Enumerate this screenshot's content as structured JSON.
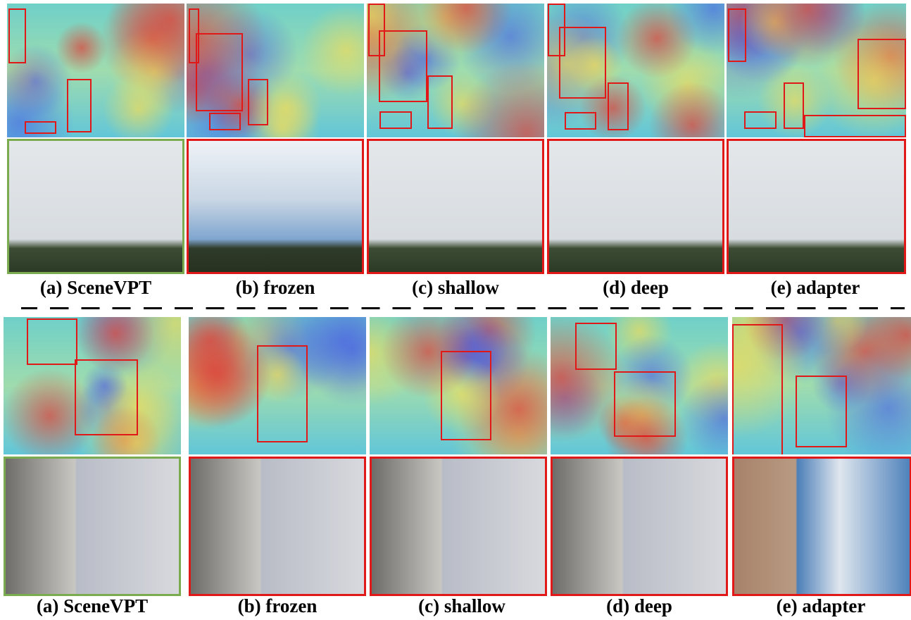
{
  "groups": [
    {
      "captions": [
        "(a) SceneVPT",
        "(b) frozen",
        "(c) shallow",
        "(d) deep",
        "(e) adapter"
      ]
    },
    {
      "captions": [
        "(a) SceneVPT",
        "(b) frozen",
        "(c) shallow",
        "(d) deep",
        "(e) adapter"
      ]
    }
  ]
}
